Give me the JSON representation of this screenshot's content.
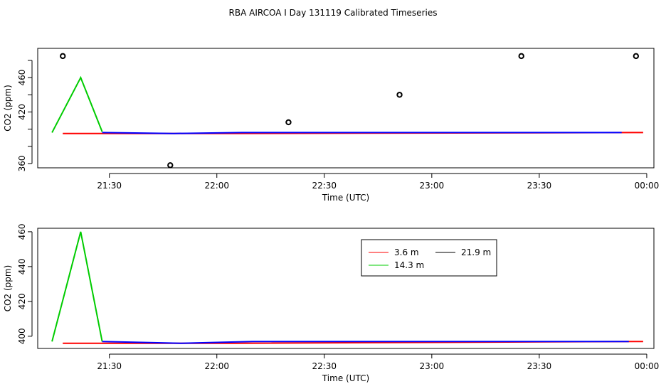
{
  "title": "RBA AIRCOA I  Day 131119  Calibrated Timeseries",
  "colors": {
    "red": "#ff0000",
    "green": "#00cc00",
    "blue": "#0000ff",
    "black": "#000000"
  },
  "chart_data": [
    {
      "type": "line",
      "xlabel": "Time (UTC)",
      "ylabel": "CO2 (ppm)",
      "xlim": [
        "21:10",
        "00:02"
      ],
      "ylim": [
        355,
        494
      ],
      "x_ticks": [
        "21:30",
        "22:00",
        "22:30",
        "23:00",
        "23:30",
        "00:00"
      ],
      "y_ticks": [
        360,
        380,
        400,
        420,
        440,
        460,
        480
      ],
      "y_tick_labels": [
        "360",
        "420",
        "460"
      ],
      "series": [
        {
          "color": "#00cc00",
          "x": [
            "21:14",
            "21:22",
            "21:28"
          ],
          "y": [
            396,
            460,
            397
          ]
        },
        {
          "color": "#ff0000",
          "x": [
            "21:17",
            "21:28",
            "21:54",
            "22:05",
            "23:57",
            "23:59"
          ],
          "y": [
            395,
            395,
            395,
            395,
            396,
            396
          ]
        },
        {
          "color": "#0000ff",
          "x": [
            "21:28",
            "21:48",
            "22:07",
            "23:53"
          ],
          "y": [
            396,
            395,
            396,
            396
          ]
        }
      ],
      "points": {
        "style": "open-circle",
        "x": [
          "21:17",
          "21:47",
          "22:20",
          "22:51",
          "23:25",
          "23:57"
        ],
        "y": [
          485,
          358,
          408,
          440,
          485,
          485
        ]
      }
    },
    {
      "type": "line",
      "xlabel": "Time (UTC)",
      "ylabel": "CO2 (ppm)",
      "xlim": [
        "21:10",
        "00:02"
      ],
      "ylim": [
        393,
        462
      ],
      "x_ticks": [
        "21:30",
        "22:00",
        "22:30",
        "23:00",
        "23:30",
        "00:00"
      ],
      "y_ticks": [
        400,
        420,
        440,
        460
      ],
      "legend": {
        "position": "top-center",
        "entries": [
          {
            "label": "3.6 m",
            "color": "#ff0000"
          },
          {
            "label": "21.9 m",
            "color": "#000000"
          },
          {
            "label": "14.3 m",
            "color": "#00cc00"
          }
        ]
      },
      "series": [
        {
          "color": "#00cc00",
          "x": [
            "21:14",
            "21:22",
            "21:28"
          ],
          "y": [
            397,
            460,
            397
          ]
        },
        {
          "color": "#ff0000",
          "x": [
            "21:17",
            "21:28",
            "21:54",
            "22:05",
            "23:57",
            "23:59"
          ],
          "y": [
            396,
            396,
            396,
            396,
            397,
            397
          ]
        },
        {
          "color": "#0000ff",
          "x": [
            "21:28",
            "21:50",
            "22:10",
            "23:55"
          ],
          "y": [
            397,
            396,
            397,
            397
          ]
        }
      ]
    }
  ]
}
